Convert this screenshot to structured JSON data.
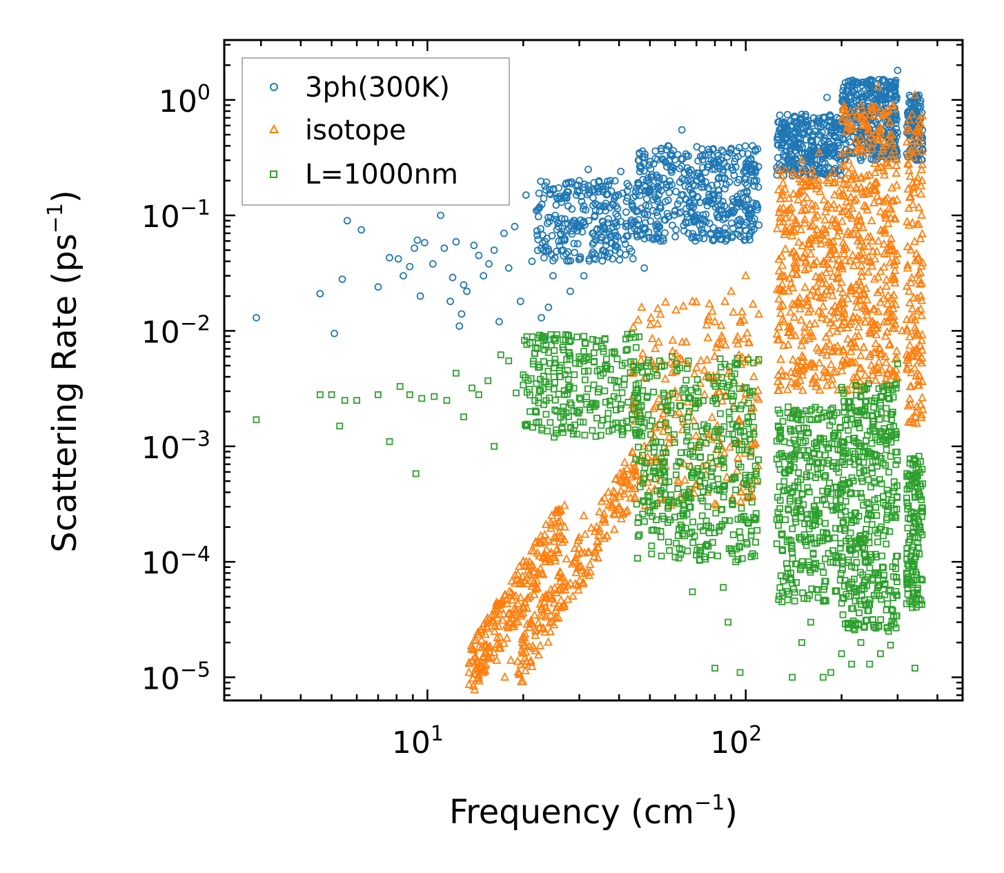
{
  "chart_data": {
    "type": "scatter",
    "xscale": "log",
    "yscale": "log",
    "xlim": [
      2.3,
      480
    ],
    "ylim": [
      6.3e-06,
      3.3
    ],
    "xlabel": {
      "text": "Frequency (cm",
      "sup": "−1",
      "close": ")"
    },
    "ylabel": {
      "text": "Scattering Rate (ps",
      "sup": "−1",
      "close": ")"
    },
    "xticks": [
      {
        "value": 10,
        "base": "10",
        "exp": "1"
      },
      {
        "value": 100,
        "base": "10",
        "exp": "2"
      }
    ],
    "yticks": [
      {
        "value": 1,
        "base": "10",
        "exp": "0"
      },
      {
        "value": 0.1,
        "base": "10",
        "exp": "−1"
      },
      {
        "value": 0.01,
        "base": "10",
        "exp": "−2"
      },
      {
        "value": 0.001,
        "base": "10",
        "exp": "−3"
      },
      {
        "value": 0.0001,
        "base": "10",
        "exp": "−4"
      },
      {
        "value": 1e-05,
        "base": "10",
        "exp": "−5"
      }
    ],
    "legend_position": "top-left",
    "series": [
      {
        "name": "3ph(300K)",
        "marker": "circle",
        "color": "#1f77b4",
        "points": [
          [
            2.9,
            0.013
          ],
          [
            4.6,
            0.021
          ],
          [
            5.1,
            0.0095
          ],
          [
            5.4,
            0.028
          ],
          [
            5.6,
            0.09
          ],
          [
            6.2,
            0.075
          ],
          [
            7.0,
            0.024
          ],
          [
            7.6,
            0.043
          ],
          [
            8.1,
            0.042
          ],
          [
            8.4,
            0.03
          ],
          [
            8.8,
            0.036
          ],
          [
            9.1,
            0.052
          ],
          [
            9.3,
            0.061
          ],
          [
            9.5,
            0.02
          ],
          [
            9.8,
            0.058
          ],
          [
            10.4,
            0.038
          ],
          [
            11.0,
            0.1
          ],
          [
            11.3,
            0.052
          ],
          [
            11.8,
            0.018
          ],
          [
            12.0,
            0.029
          ],
          [
            12.3,
            0.059
          ],
          [
            12.6,
            0.011
          ],
          [
            12.8,
            0.014
          ],
          [
            13.0,
            0.025
          ],
          [
            13.3,
            0.022
          ],
          [
            14.0,
            0.055
          ],
          [
            14.5,
            0.045
          ],
          [
            15.0,
            0.03
          ],
          [
            15.6,
            0.038
          ],
          [
            16.2,
            0.05
          ],
          [
            16.8,
            0.012
          ],
          [
            17.4,
            0.07
          ],
          [
            18.0,
            0.035
          ],
          [
            18.8,
            0.08
          ],
          [
            19.6,
            0.018
          ],
          [
            20.4,
            0.15
          ],
          [
            21.3,
            0.04
          ],
          [
            22.0,
            0.11
          ],
          [
            22.8,
            0.013
          ],
          [
            23.4,
            0.0085
          ],
          [
            24.0,
            0.016
          ],
          [
            24.8,
            0.03
          ],
          [
            25.6,
            0.14
          ],
          [
            26.4,
            0.06
          ],
          [
            27.3,
            0.19
          ],
          [
            28.1,
            0.022
          ],
          [
            29.0,
            0.09
          ],
          [
            30.0,
            0.2
          ],
          [
            31.0,
            0.03
          ],
          [
            32.0,
            0.25
          ],
          [
            33.0,
            0.07
          ],
          [
            34.5,
            0.16
          ],
          [
            36.0,
            0.045
          ],
          [
            37.5,
            0.2
          ],
          [
            39.0,
            0.05
          ],
          [
            40.5,
            0.24
          ],
          [
            42.0,
            0.08
          ],
          [
            44.0,
            0.12
          ],
          [
            46.0,
            0.3
          ],
          [
            48.0,
            0.035
          ],
          [
            50.0,
            0.16
          ],
          [
            52.0,
            0.36
          ],
          [
            54.0,
            0.06
          ],
          [
            57.0,
            0.4
          ],
          [
            60.0,
            0.11
          ],
          [
            63.0,
            0.55
          ],
          [
            66.0,
            0.07
          ],
          [
            70.0,
            0.2
          ],
          [
            74.0,
            0.09
          ],
          [
            78.0,
            0.3
          ],
          [
            82.0,
            0.12
          ],
          [
            86.0,
            0.17
          ],
          [
            90.0,
            0.38
          ],
          [
            95.0,
            0.13
          ],
          [
            100.0,
            0.26
          ],
          [
            105.0,
            0.4
          ],
          [
            130.0,
            0.5
          ],
          [
            140.0,
            0.22
          ],
          [
            150.0,
            0.75
          ],
          [
            160.0,
            0.3
          ],
          [
            170.0,
            0.65
          ],
          [
            180.0,
            1.05
          ],
          [
            190.0,
            0.4
          ],
          [
            200.0,
            0.55
          ],
          [
            215.0,
            0.9
          ],
          [
            230.0,
            0.3
          ],
          [
            250.0,
            1.2
          ],
          [
            270.0,
            1.5
          ],
          [
            285.0,
            0.7
          ],
          [
            300.0,
            1.8
          ],
          [
            330.0,
            0.45
          ],
          [
            350.0,
            1.1
          ]
        ],
        "bands": [
          {
            "x": [
              22,
              45
            ],
            "y": [
              0.04,
              0.2
            ],
            "n": 260
          },
          {
            "x": [
              45,
              110
            ],
            "y": [
              0.06,
              0.4
            ],
            "n": 460
          },
          {
            "x": [
              125,
              200
            ],
            "y": [
              0.22,
              0.75
            ],
            "n": 300
          },
          {
            "x": [
              200,
              300
            ],
            "y": [
              0.3,
              1.5
            ],
            "n": 360
          },
          {
            "x": [
              320,
              360
            ],
            "y": [
              0.3,
              1.1
            ],
            "n": 110
          }
        ]
      },
      {
        "name": "isotope",
        "marker": "triangle",
        "color": "#ff7f0e",
        "points": [
          [
            13.5,
            1.1e-05
          ],
          [
            14.2,
            1.2e-05
          ],
          [
            15.0,
            1.1e-05
          ],
          [
            15.6,
            1.8e-05
          ],
          [
            16.5,
            1.4e-05
          ],
          [
            17.5,
            1e-05
          ],
          [
            18.3,
            1.4e-05
          ],
          [
            19.0,
            3e-05
          ],
          [
            20.2,
            2.2e-05
          ],
          [
            21.0,
            5e-05
          ],
          [
            22.0,
            6e-05
          ],
          [
            23.5,
            4e-05
          ],
          [
            24.2,
            0.0001
          ],
          [
            25.0,
            0.00015
          ],
          [
            26.2,
            8e-05
          ],
          [
            27.0,
            0.0002
          ],
          [
            29.0,
            0.00013
          ],
          [
            31.0,
            0.00025
          ],
          [
            34.0,
            0.0002
          ],
          [
            37.0,
            0.0004
          ],
          [
            40.0,
            0.0003
          ],
          [
            44.0,
            0.0009
          ],
          [
            48.0,
            0.001
          ],
          [
            52.0,
            0.0022
          ],
          [
            56.0,
            0.0015
          ],
          [
            60.0,
            0.003
          ],
          [
            65.0,
            0.008
          ],
          [
            68.0,
            0.018
          ],
          [
            75.0,
            0.004
          ],
          [
            80.0,
            0.012
          ],
          [
            90.0,
            0.022
          ],
          [
            100.0,
            0.03
          ],
          [
            106.0,
            0.004
          ],
          [
            130.0,
            0.15
          ],
          [
            140.0,
            0.002
          ],
          [
            150.0,
            0.3
          ],
          [
            160.0,
            0.08
          ],
          [
            170.0,
            0.35
          ],
          [
            180.0,
            0.2
          ],
          [
            190.0,
            0.15
          ],
          [
            200.0,
            0.005
          ],
          [
            210.0,
            0.3
          ],
          [
            225.0,
            0.06
          ],
          [
            235.0,
            0.6
          ],
          [
            245.0,
            0.01
          ],
          [
            260.0,
            1.3
          ],
          [
            275.0,
            0.1
          ],
          [
            290.0,
            0.9
          ],
          [
            310.0,
            0.01
          ],
          [
            330.0,
            0.05
          ],
          [
            340.0,
            1.1
          ],
          [
            345.0,
            0.0022
          ],
          [
            355.0,
            0.02
          ]
        ],
        "bands": [
          {
            "x": [
              13.5,
              27
            ],
            "y": [
              1.1e-05,
              0.00022
            ],
            "n": 230,
            "trend": true,
            "spread": 1.35
          },
          {
            "x": [
              19,
              45
            ],
            "y": [
              1.2e-05,
              0.0006
            ],
            "n": 200,
            "trend": true,
            "spread": 1.35
          },
          {
            "x": [
              44,
              110
            ],
            "y": [
              0.0003,
              0.018
            ],
            "n": 240
          },
          {
            "x": [
              125,
              200
            ],
            "y": [
              0.003,
              0.25
            ],
            "n": 340
          },
          {
            "x": [
              200,
              300
            ],
            "y": [
              0.003,
              0.9
            ],
            "n": 400
          },
          {
            "x": [
              320,
              360
            ],
            "y": [
              0.0015,
              0.8
            ],
            "n": 140
          }
        ]
      },
      {
        "name": "L=1000nm",
        "marker": "square",
        "color": "#2ca02c",
        "points": [
          [
            2.9,
            0.0017
          ],
          [
            4.6,
            0.0028
          ],
          [
            5.0,
            0.0028
          ],
          [
            5.3,
            0.0015
          ],
          [
            5.5,
            0.0025
          ],
          [
            6.0,
            0.0025
          ],
          [
            7.0,
            0.0028
          ],
          [
            7.6,
            0.0011
          ],
          [
            8.2,
            0.0033
          ],
          [
            8.8,
            0.0028
          ],
          [
            9.2,
            0.00058
          ],
          [
            9.6,
            0.0026
          ],
          [
            10.5,
            0.0027
          ],
          [
            11.5,
            0.0025
          ],
          [
            12.3,
            0.0043
          ],
          [
            13.0,
            0.0018
          ],
          [
            13.8,
            0.0032
          ],
          [
            14.5,
            0.0028
          ],
          [
            15.5,
            0.0037
          ],
          [
            16.2,
            0.001
          ],
          [
            17.0,
            0.0062
          ],
          [
            18.0,
            0.0055
          ],
          [
            19.0,
            0.0029
          ],
          [
            20.0,
            0.0034
          ],
          [
            21.0,
            0.002
          ],
          [
            22.0,
            0.0035
          ],
          [
            23.0,
            0.009
          ],
          [
            24.0,
            0.0065
          ],
          [
            25.0,
            0.0012
          ],
          [
            26.0,
            0.0048
          ],
          [
            27.0,
            0.0028
          ],
          [
            28.0,
            0.0033
          ],
          [
            30.0,
            0.0052
          ],
          [
            32.0,
            0.0045
          ],
          [
            35.0,
            0.0041
          ],
          [
            38.0,
            0.0065
          ],
          [
            42.0,
            0.0085
          ],
          [
            45.0,
            0.0088
          ],
          [
            47.0,
            0.0022
          ],
          [
            48.0,
            0.00033
          ],
          [
            50.0,
            0.0015
          ],
          [
            52.0,
            0.0006
          ],
          [
            55.0,
            0.00072
          ],
          [
            57.0,
            0.0025
          ],
          [
            60.0,
            0.00011
          ],
          [
            63.0,
            0.0002
          ],
          [
            66.0,
            0.0012
          ],
          [
            68.0,
            5.5e-05
          ],
          [
            72.0,
            0.00045
          ],
          [
            76.0,
            0.0003
          ],
          [
            80.0,
            1.2e-05
          ],
          [
            85.0,
            6e-05
          ],
          [
            88.0,
            3e-05
          ],
          [
            93.0,
            0.0001
          ],
          [
            96.0,
            1.1e-05
          ],
          [
            100.0,
            0.00023
          ],
          [
            105.0,
            0.0018
          ],
          [
            130.0,
            4.5e-05
          ],
          [
            140.0,
            1e-05
          ],
          [
            150.0,
            2e-05
          ],
          [
            160.0,
            3e-05
          ],
          [
            175.0,
            1e-05
          ],
          [
            185.0,
            1.1e-05
          ],
          [
            200.0,
            1.6e-05
          ],
          [
            215.0,
            1.3e-05
          ],
          [
            230.0,
            2e-05
          ],
          [
            245.0,
            1.3e-05
          ],
          [
            265.0,
            1.6e-05
          ],
          [
            285.0,
            1.9e-05
          ],
          [
            300.0,
            0.0052
          ],
          [
            320.0,
            8e-05
          ],
          [
            340.0,
            1.2e-05
          ],
          [
            350.0,
            0.00082
          ]
        ],
        "bands": [
          {
            "x": [
              20,
              50
            ],
            "y": [
              0.0012,
              0.0095
            ],
            "n": 260
          },
          {
            "x": [
              45,
              110
            ],
            "y": [
              0.0001,
              0.006
            ],
            "n": 420
          },
          {
            "x": [
              125,
              200
            ],
            "y": [
              4.5e-05,
              0.0022
            ],
            "n": 340
          },
          {
            "x": [
              200,
              300
            ],
            "y": [
              2.5e-05,
              0.0035
            ],
            "n": 420
          },
          {
            "x": [
              320,
              360
            ],
            "y": [
              4e-05,
              0.00082
            ],
            "n": 140
          }
        ]
      }
    ]
  }
}
